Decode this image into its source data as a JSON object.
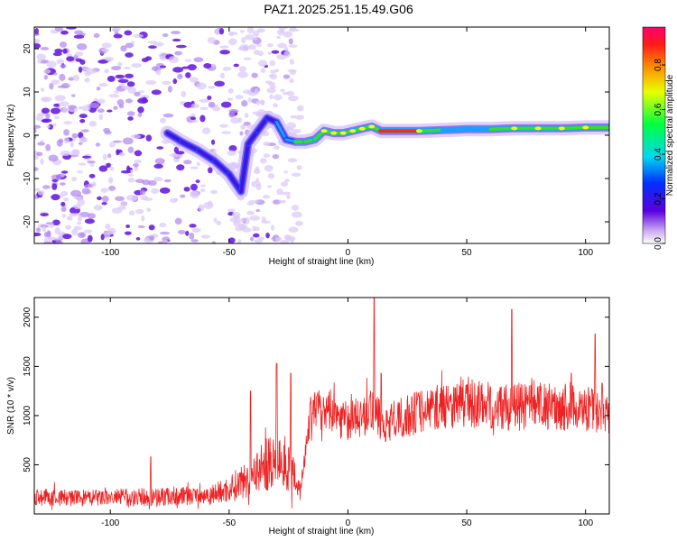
{
  "title": "PAZ1.2025.251.15.49.G06",
  "colors": {
    "line": "#ee2222",
    "speck": "#7a3df0",
    "track_core": "#ff2a00",
    "track_mid": "#36e020",
    "track_edge": "#1aa0ff"
  },
  "chart_data": [
    {
      "type": "heatmap",
      "xlabel": "Height of straight line (km)",
      "ylabel": "Frequency (Hz)",
      "xlim": [
        -132,
        110
      ],
      "ylim": [
        -25,
        25
      ],
      "xticks": [
        "-100",
        "-50",
        "0",
        "50",
        "100"
      ],
      "xtick_values": [
        -100,
        -50,
        0,
        50,
        100
      ],
      "yticks": [
        "20",
        "10",
        "0",
        "-10",
        "-20"
      ],
      "ytick_values": [
        20,
        10,
        0,
        -10,
        -20
      ],
      "colorbar": {
        "label": "Normalized spectral amplitude",
        "range": [
          0,
          0.97
        ],
        "ticks": [
          "0.0",
          "0.2",
          "0.4",
          "0.6",
          "0.8"
        ],
        "tick_values": [
          0.0,
          0.2,
          0.4,
          0.6,
          0.8
        ]
      },
      "ridge": {
        "x": [
          -76,
          -70,
          -63,
          -56,
          -50,
          -45,
          -42,
          -38,
          -34,
          -30,
          -26,
          -22,
          -18,
          -14,
          -10,
          -6,
          -2,
          2,
          6,
          10,
          14,
          20,
          30,
          40,
          50,
          60,
          70,
          80,
          90,
          100,
          110
        ],
        "y": [
          0.5,
          -1.5,
          -3.5,
          -6,
          -9,
          -13,
          -2,
          1,
          4,
          3,
          -1,
          -1.5,
          -1.5,
          -1,
          1,
          0.5,
          0.5,
          1,
          1.5,
          2,
          1,
          1,
          1,
          1.2,
          1.4,
          1.4,
          1.6,
          1.6,
          1.6,
          1.8,
          1.8
        ],
        "amplitude": [
          0.3,
          0.35,
          0.35,
          0.3,
          0.3,
          0.25,
          0.2,
          0.25,
          0.3,
          0.3,
          0.45,
          0.55,
          0.6,
          0.6,
          0.62,
          0.65,
          0.68,
          0.65,
          0.62,
          0.8,
          0.85,
          0.97,
          0.75,
          0.55,
          0.55,
          0.55,
          0.7,
          0.65,
          0.68,
          0.65,
          0.6
        ]
      }
    },
    {
      "type": "line",
      "xlabel": "Height of straight line (km)",
      "ylabel": "SNR (10 * v/v)",
      "xlim": [
        -132,
        110
      ],
      "ylim": [
        0,
        2200
      ],
      "xticks": [
        "-100",
        "-50",
        "0",
        "50",
        "100"
      ],
      "xtick_values": [
        -100,
        -50,
        0,
        50,
        100
      ],
      "yticks": [
        "2000",
        "1500",
        "1000",
        "500"
      ],
      "ytick_values": [
        2000,
        1500,
        1000,
        500
      ],
      "trend": {
        "x": [
          -132,
          -110,
          -90,
          -75,
          -60,
          -52,
          -45,
          -38,
          -30,
          -24,
          -20,
          -16,
          -12,
          -5,
          0,
          5,
          10,
          15,
          20,
          30,
          40,
          50,
          60,
          70,
          80,
          90,
          100,
          110
        ],
        "y": [
          170,
          160,
          170,
          180,
          190,
          230,
          320,
          450,
          560,
          500,
          250,
          1000,
          1050,
          1000,
          950,
          980,
          1050,
          900,
          950,
          1050,
          1100,
          1130,
          1100,
          1080,
          1100,
          1090,
          1060,
          1050
        ]
      },
      "peaks": {
        "x": [
          -83,
          -41,
          -30,
          -24,
          -13,
          11,
          14,
          69,
          94,
          104,
          107
        ],
        "y": [
          580,
          1250,
          1530,
          1430,
          1200,
          2200,
          1430,
          2080,
          1430,
          1830,
          1330
        ]
      }
    }
  ]
}
